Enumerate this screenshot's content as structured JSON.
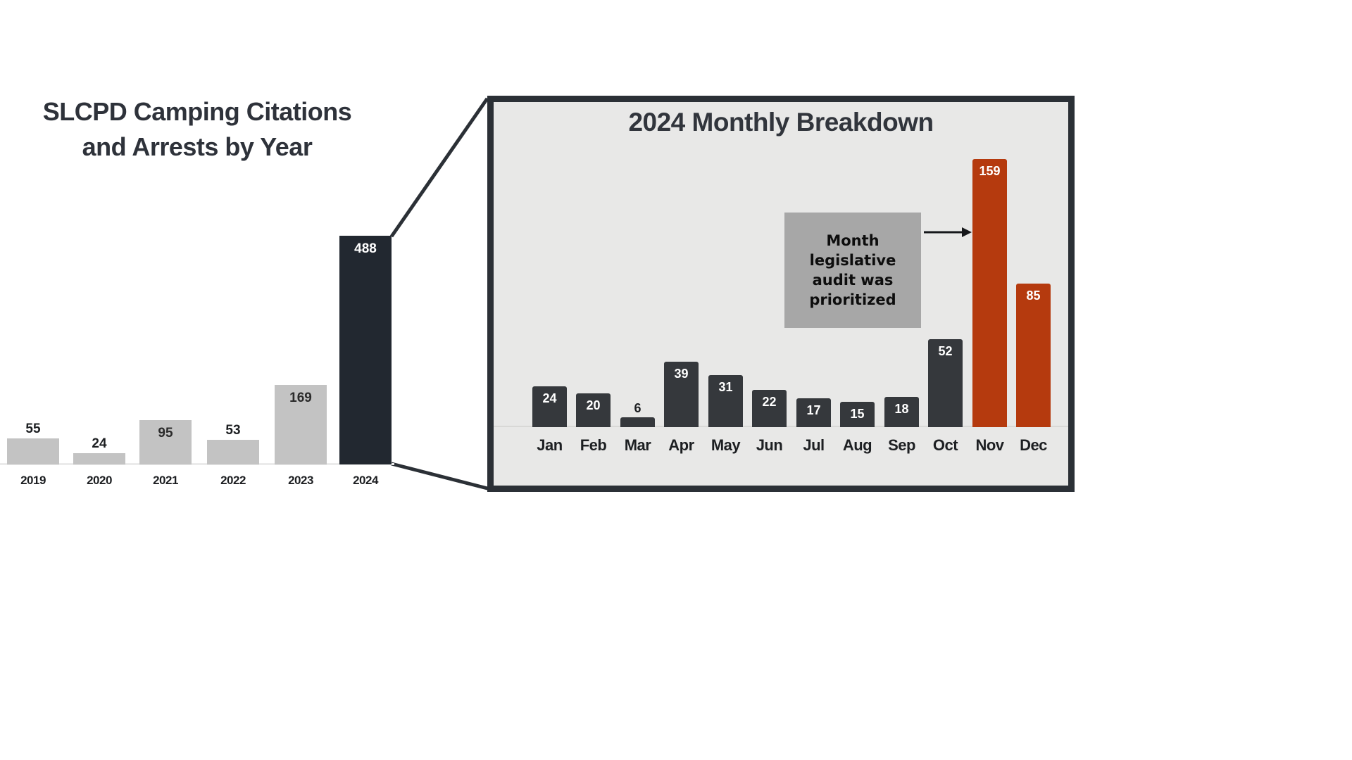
{
  "chart_data": [
    {
      "type": "bar",
      "title": "SLCPD Camping Citations and Arrests by Year",
      "title_lines": [
        "SLCPD Camping Citations",
        "and Arrests by Year"
      ],
      "categories": [
        "2019",
        "2020",
        "2021",
        "2022",
        "2023",
        "2024"
      ],
      "values": [
        55,
        24,
        95,
        53,
        169,
        488
      ],
      "highlight_category": "2024",
      "ylim": [
        0,
        500
      ],
      "grid": false,
      "legend": "none",
      "value_label_style": "above short bars, inside tall bars"
    },
    {
      "type": "bar",
      "title": "2024 Monthly Breakdown",
      "categories": [
        "Jan",
        "Feb",
        "Mar",
        "Apr",
        "May",
        "Jun",
        "Jul",
        "Aug",
        "Sep",
        "Oct",
        "Nov",
        "Dec"
      ],
      "values": [
        24,
        20,
        6,
        39,
        31,
        22,
        17,
        15,
        18,
        52,
        159,
        85
      ],
      "highlight_categories": [
        "Nov",
        "Dec"
      ],
      "ylim": [
        0,
        170
      ],
      "grid": false,
      "legend": "none",
      "annotation": {
        "lines": [
          "Month",
          "legislative",
          "audit was",
          "prioritized"
        ],
        "arrow_target": "Nov"
      }
    }
  ],
  "colors": {
    "background": "#ffffff",
    "bar_gray": "#c3c3c3",
    "bar_dark_navy": "#222830",
    "bar_monthly_dark": "#35383c",
    "bar_highlight_red": "#b53a0e",
    "panel_bg": "#e8e8e7",
    "panel_border": "#2b3036",
    "annotation_bg": "#a7a7a7",
    "text_dark": "#1d1f22",
    "value_text_light": "#ffffff"
  }
}
